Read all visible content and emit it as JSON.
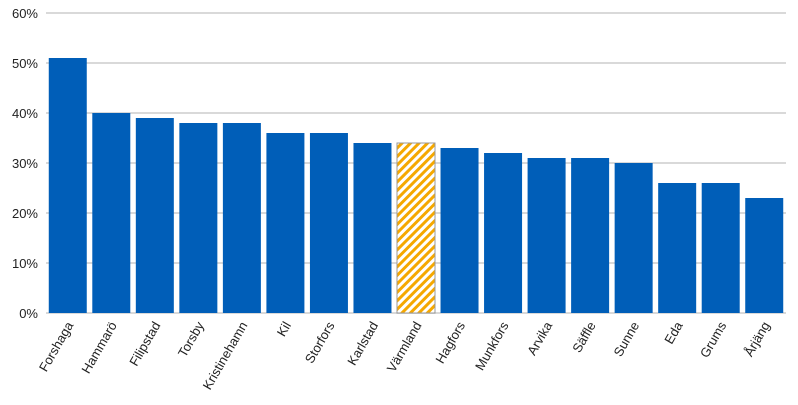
{
  "chart_data": {
    "type": "bar",
    "categories": [
      "Forshaga",
      "Hammarö",
      "Filipstad",
      "Torsby",
      "Kristinehamn",
      "Kil",
      "Storfors",
      "Karlstad",
      "Värmland",
      "Hagfors",
      "Munkfors",
      "Arvika",
      "Säffle",
      "Sunne",
      "Eda",
      "Grums",
      "Årjäng"
    ],
    "values": [
      51,
      40,
      39,
      38,
      38,
      36,
      36,
      34,
      34,
      33,
      32,
      31,
      31,
      30,
      26,
      26,
      23
    ],
    "highlight_category": "Värmland",
    "ylim": [
      0,
      60
    ],
    "yticks": [
      "0%",
      "10%",
      "20%",
      "30%",
      "40%",
      "50%",
      "60%"
    ],
    "grid": true,
    "xlabel": "",
    "ylabel": "",
    "title": "",
    "colors": {
      "bar": "#005EB8",
      "highlight": "#F5A800",
      "grid": "#D9D9D9"
    }
  }
}
